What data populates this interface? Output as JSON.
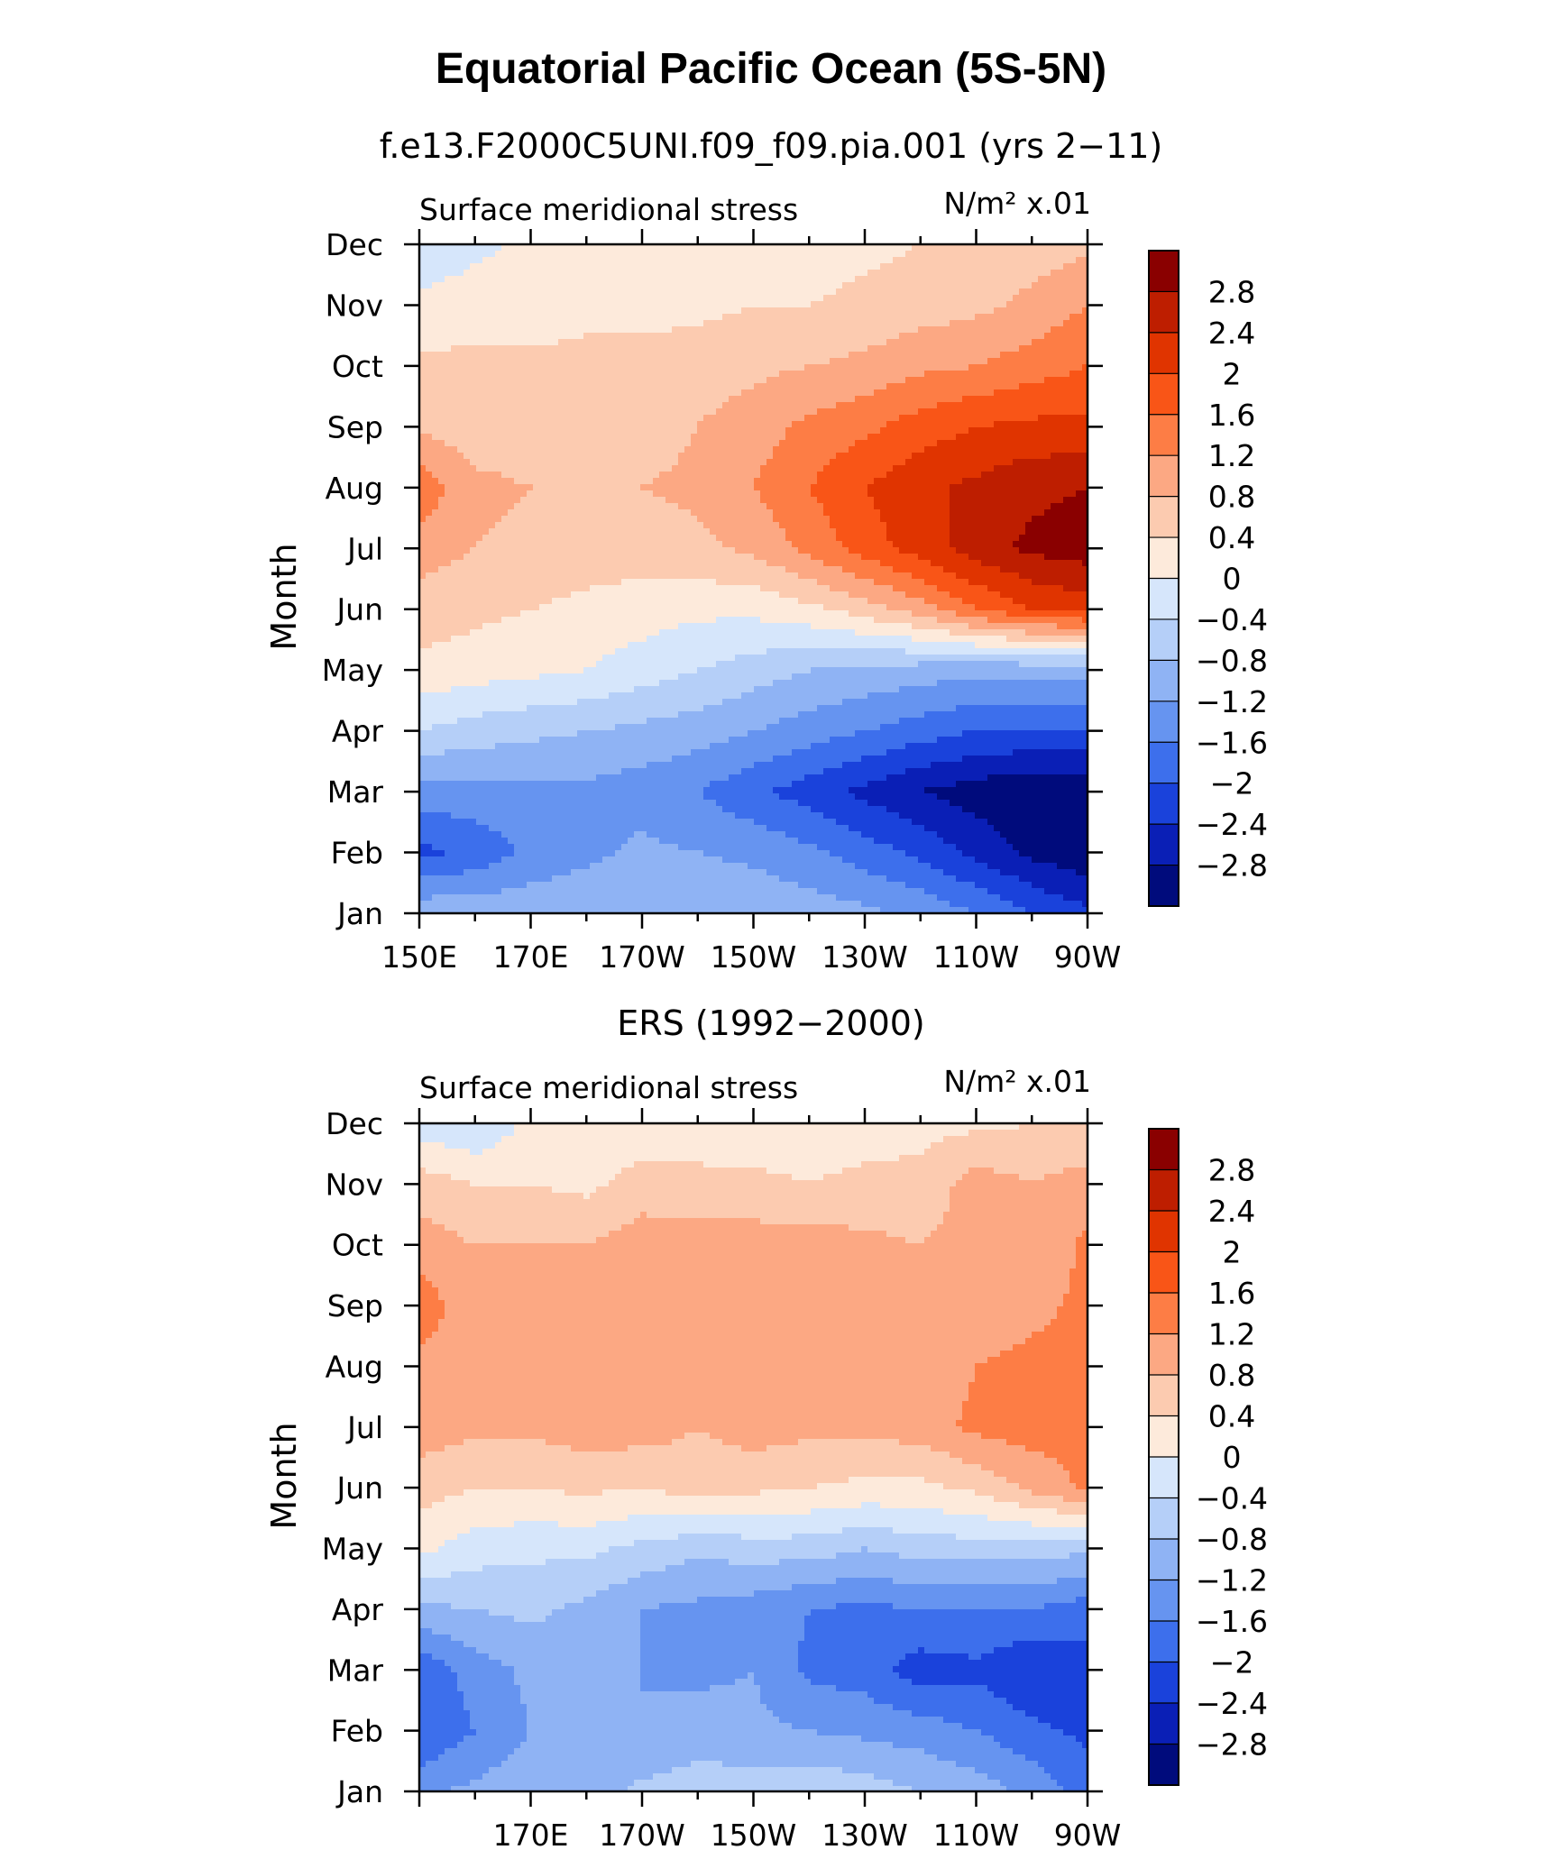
{
  "figure": {
    "title": "Equatorial Pacific Ocean (5S-5N)"
  },
  "colorbar": {
    "levels": [
      "2.8",
      "2.4",
      "2",
      "1.6",
      "1.2",
      "0.8",
      "0.4",
      "0",
      "−0.4",
      "−0.8",
      "−1.2",
      "−1.6",
      "−2",
      "−2.4",
      "−2.8"
    ],
    "colors": [
      "#8a0000",
      "#be1e00",
      "#e03400",
      "#f95517",
      "#fd7d45",
      "#fca883",
      "#fccbb0",
      "#fdeadb",
      "#d6e6fb",
      "#b5cff8",
      "#8fb3f4",
      "#6694f0",
      "#3d6fec",
      "#1a42db",
      "#0a1fb6",
      "#000b7c"
    ]
  },
  "chart_data": [
    {
      "type": "heatmap",
      "subtitle": "f.e13.F2000C5UNI.f09_f09.pia.001 (yrs 2−11)",
      "variable_label": "Surface meridional stress",
      "units_label": "N/m² x.01",
      "ylabel": "Month",
      "xlabel": "",
      "y_categories": [
        "Jan",
        "Feb",
        "Mar",
        "Apr",
        "May",
        "Jun",
        "Jul",
        "Aug",
        "Sep",
        "Oct",
        "Nov",
        "Dec"
      ],
      "x_tick_labels": [
        "150E",
        "170E",
        "170W",
        "150W",
        "130W",
        "110W",
        "90W"
      ],
      "x_values": [
        150,
        170,
        190,
        210,
        230,
        250,
        270
      ],
      "xlim": [
        150,
        270
      ],
      "contour_levels": [
        -2.8,
        -2.4,
        -2,
        -1.6,
        -1.2,
        -0.8,
        -0.4,
        0,
        0.4,
        0.8,
        1.2,
        1.6,
        2,
        2.4,
        2.8
      ],
      "x_grid": [
        150,
        160,
        170,
        180,
        190,
        200,
        210,
        220,
        230,
        240,
        250,
        260,
        270
      ],
      "values": [
        [
          -0.9,
          -0.9,
          -0.9,
          -0.9,
          -0.8,
          -0.8,
          -0.9,
          -1.0,
          -1.1,
          -1.3,
          -1.6,
          -2.0,
          -2.3
        ],
        [
          -2.1,
          -1.9,
          -1.5,
          -1.3,
          -1.1,
          -1.2,
          -1.3,
          -1.5,
          -1.8,
          -2.1,
          -2.5,
          -2.9,
          -3.1
        ],
        [
          -1.4,
          -1.3,
          -1.3,
          -1.3,
          -1.4,
          -1.6,
          -1.9,
          -2.2,
          -2.5,
          -2.8,
          -3.0,
          -3.2,
          -3.2
        ],
        [
          -0.4,
          -0.6,
          -0.7,
          -0.8,
          -0.9,
          -1.0,
          -1.2,
          -1.4,
          -1.6,
          -1.8,
          -2.0,
          -2.0,
          -2.0
        ],
        [
          0.3,
          0.2,
          0.1,
          0.0,
          -0.2,
          -0.4,
          -0.6,
          -0.8,
          -0.9,
          -1.0,
          -1.1,
          -1.1,
          -1.1
        ],
        [
          0.6,
          0.5,
          0.4,
          0.3,
          0.2,
          0.1,
          0.1,
          0.3,
          0.6,
          1.0,
          1.6,
          2.0,
          2.2
        ],
        [
          1.0,
          0.8,
          0.7,
          0.6,
          0.6,
          0.7,
          0.9,
          1.3,
          1.8,
          2.2,
          2.6,
          2.9,
          3.0
        ],
        [
          1.5,
          0.9,
          0.8,
          0.8,
          0.8,
          0.9,
          1.2,
          1.6,
          2.0,
          2.3,
          2.5,
          2.7,
          2.8
        ],
        [
          0.7,
          0.6,
          0.6,
          0.6,
          0.6,
          0.8,
          1.0,
          1.3,
          1.5,
          1.8,
          2.0,
          2.1,
          2.1
        ],
        [
          0.5,
          0.5,
          0.5,
          0.5,
          0.5,
          0.6,
          0.7,
          0.8,
          0.9,
          1.1,
          1.2,
          1.4,
          1.6
        ],
        [
          0.1,
          0.2,
          0.2,
          0.3,
          0.3,
          0.3,
          0.4,
          0.4,
          0.5,
          0.6,
          0.7,
          0.9,
          1.2
        ],
        [
          -0.3,
          -0.1,
          0.1,
          0.1,
          0.1,
          0.1,
          0.1,
          0.2,
          0.3,
          0.4,
          0.5,
          0.6,
          0.7
        ]
      ]
    },
    {
      "type": "heatmap",
      "subtitle": "ERS (1992−2000)",
      "variable_label": "Surface meridional stress",
      "units_label": "N/m² x.01",
      "ylabel": "Month",
      "xlabel": "",
      "y_categories": [
        "Jan",
        "Feb",
        "Mar",
        "Apr",
        "May",
        "Jun",
        "Jul",
        "Aug",
        "Sep",
        "Oct",
        "Nov",
        "Dec"
      ],
      "x_tick_labels": [
        "170E",
        "170W",
        "150W",
        "130W",
        "110W",
        "90W"
      ],
      "x_values": [
        170,
        190,
        210,
        230,
        250,
        270
      ],
      "xlim": [
        150,
        270
      ],
      "contour_levels": [
        -2.8,
        -2.4,
        -2,
        -1.6,
        -1.2,
        -0.8,
        -0.4,
        0,
        0.4,
        0.8,
        1.2,
        1.6,
        2,
        2.4,
        2.8
      ],
      "x_grid": [
        150,
        160,
        170,
        180,
        190,
        200,
        210,
        220,
        230,
        240,
        250,
        260,
        270
      ],
      "values": [
        [
          -1.3,
          -1.1,
          -0.9,
          -1.0,
          -0.7,
          -0.6,
          -0.6,
          -0.5,
          -0.6,
          -0.8,
          -1.0,
          -1.3,
          -1.8
        ],
        [
          -2.0,
          -1.6,
          -1.2,
          -1.2,
          -1.2,
          -1.0,
          -1.1,
          -1.2,
          -1.3,
          -1.4,
          -1.6,
          -1.9,
          -2.1
        ],
        [
          -1.9,
          -1.4,
          -1.1,
          -1.0,
          -1.2,
          -1.3,
          -1.2,
          -1.7,
          -1.8,
          -2.2,
          -2.1,
          -2.4,
          -2.2
        ],
        [
          -0.9,
          -0.8,
          -0.7,
          -0.9,
          -1.2,
          -1.3,
          -1.4,
          -1.6,
          -1.7,
          -1.6,
          -1.6,
          -1.6,
          -1.8
        ],
        [
          0.1,
          -0.2,
          -0.3,
          -0.3,
          -0.5,
          -0.7,
          -0.6,
          -0.6,
          -0.8,
          -0.6,
          -0.6,
          -0.6,
          -0.7
        ],
        [
          0.6,
          0.4,
          0.4,
          0.5,
          0.4,
          0.6,
          0.5,
          0.4,
          0.3,
          0.3,
          0.5,
          0.9,
          1.3
        ],
        [
          1.0,
          0.9,
          0.9,
          1.0,
          1.0,
          0.8,
          1.0,
          0.9,
          0.9,
          1.0,
          1.3,
          1.4,
          1.3
        ],
        [
          1.1,
          1.0,
          0.8,
          1.0,
          1.0,
          1.1,
          1.1,
          1.0,
          1.0,
          0.9,
          1.2,
          1.3,
          1.3
        ],
        [
          1.4,
          1.0,
          0.8,
          1.0,
          1.0,
          1.1,
          1.0,
          1.1,
          1.0,
          1.0,
          1.0,
          1.1,
          1.3
        ],
        [
          1.0,
          0.8,
          0.8,
          0.8,
          1.0,
          1.0,
          1.0,
          1.0,
          0.9,
          0.8,
          1.0,
          0.8,
          1.3
        ],
        [
          0.6,
          0.4,
          0.4,
          0.3,
          0.6,
          0.5,
          0.5,
          0.4,
          0.5,
          0.5,
          1.0,
          0.8,
          1.0
        ],
        [
          -0.2,
          -0.4,
          0.1,
          0.1,
          0.1,
          0.2,
          0.1,
          0.2,
          0.2,
          0.3,
          0.3,
          0.4,
          0.4
        ]
      ]
    }
  ]
}
